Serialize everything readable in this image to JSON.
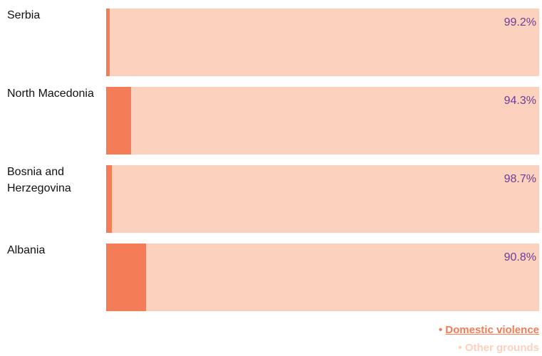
{
  "chart_data": {
    "type": "stacked-bar-horizontal",
    "categories": [
      "Serbia",
      "North Macedonia",
      "Bosnia and Herzegovina",
      "Albania"
    ],
    "series": [
      {
        "name": "Domestic violence",
        "color": "#f47c56",
        "values": [
          0.8,
          5.7,
          1.3,
          9.2
        ],
        "value_labels": [
          "0.8%",
          "5.7%",
          "1.3%",
          "9.2%"
        ]
      },
      {
        "name": "Other grounds",
        "color": "#fcd1bd",
        "values": [
          99.2,
          94.3,
          98.7,
          90.8
        ],
        "value_labels": [
          "99.2%",
          "94.3%",
          "98.7%",
          "90.8%"
        ]
      }
    ],
    "xlim": [
      0,
      100
    ],
    "legend": "bottom-right"
  }
}
